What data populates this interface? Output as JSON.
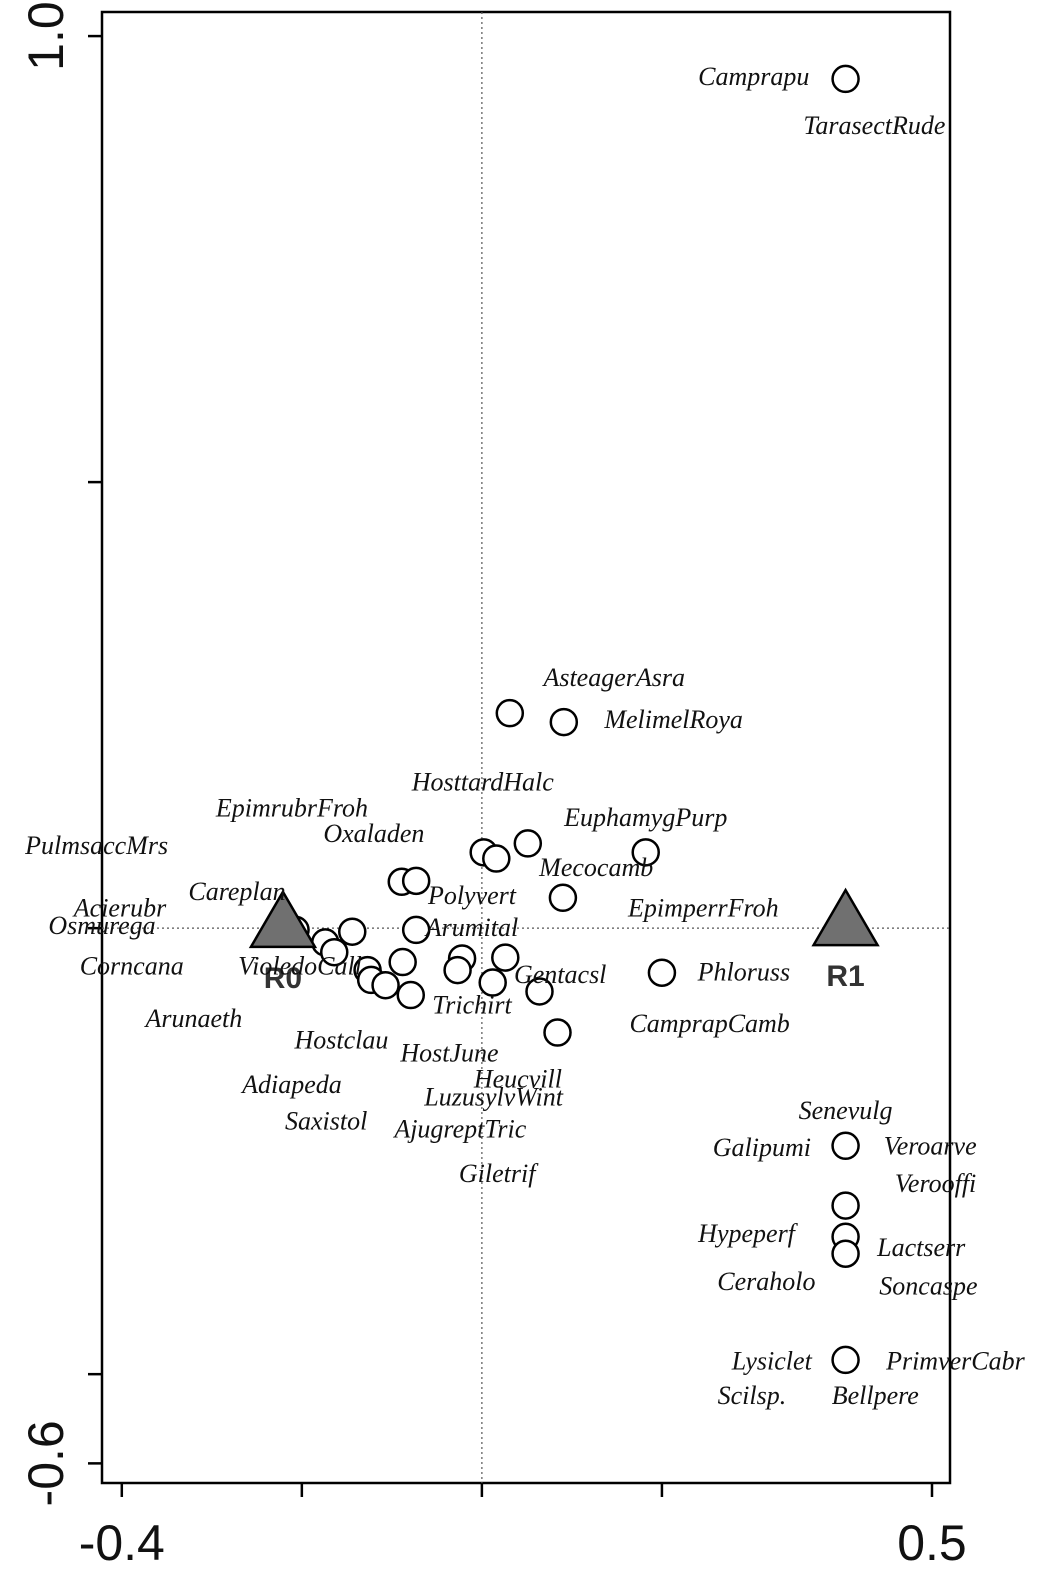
{
  "chart_data": {
    "type": "scatter",
    "xlim": [
      -0.422,
      0.52
    ],
    "ylim": [
      -0.622,
      1.027
    ],
    "xticks": [
      -0.4,
      {
        "value": -0.2,
        "label": null
      },
      {
        "value": 0,
        "label": null
      },
      {
        "value": 0.2,
        "label": null
      },
      0.5
    ],
    "yticks": [
      {
        "value": -0.6,
        "label": "-0.6"
      },
      {
        "value": -0.5,
        "label": null
      },
      {
        "value": 0,
        "label": null
      },
      {
        "value": 0.5,
        "label": null
      },
      {
        "value": 1,
        "label": "1.0"
      }
    ],
    "marker_color": "#ffffff",
    "centroid_color": "#707070",
    "sites": {
      "x": [
        0.404,
        0.031,
        0.091,
        0.002,
        0.016,
        0.051,
        0.182,
        -0.089,
        -0.073,
        0.09,
        -0.22,
        -0.207,
        -0.174,
        -0.164,
        -0.144,
        -0.073,
        -0.127,
        -0.123,
        -0.107,
        -0.088,
        -0.079,
        -0.022,
        -0.027,
        0.026,
        0.012,
        0.064,
        0.084,
        0.2,
        0.404,
        0.404,
        0.404,
        0.404,
        0.404
      ],
      "y": [
        0.952,
        0.241,
        0.231,
        0.085,
        0.078,
        0.095,
        0.085,
        0.052,
        0.053,
        0.034,
        0.003,
        -0.002,
        -0.016,
        -0.027,
        -0.004,
        -0.002,
        -0.047,
        -0.058,
        -0.064,
        -0.038,
        -0.075,
        -0.034,
        -0.047,
        -0.033,
        -0.061,
        -0.071,
        -0.117,
        -0.05,
        -0.244,
        -0.311,
        -0.346,
        -0.365,
        -0.484
      ]
    },
    "centroids": {
      "labels": [
        "R0",
        "R1"
      ],
      "x": [
        -0.221,
        0.404
      ],
      "y": [
        0.007,
        0.009
      ]
    },
    "species": {
      "labels": [
        "Camprapu",
        "TarasectRude",
        "AsteagerAsra",
        "MelimelRoya",
        "HosttardHalc",
        "EpimrubrFroh",
        "EuphamygPurp",
        "Oxaladen",
        "PulmsaccMrs",
        "Mecocamb",
        "Careplan",
        "Polyvert",
        "Acierubr",
        "EpimperrFroh",
        "Osmurega",
        "Arumital",
        "Corncana",
        "VioledoCall",
        "Gentacsl",
        "Phloruss",
        "Trichirt",
        "Arunaeth",
        "CamprapCamb",
        "Hostclau",
        "HostJune",
        "Heucvill",
        "Adiapeda",
        "LuzusylvWint",
        "Senevulg",
        "Saxistol",
        "AjugreptTric",
        "Galipumi",
        "Veroarve",
        "Giletrif",
        "Verooffi",
        "Hypeperf",
        "Lactserr",
        "Ceraholo",
        "Soncaspe",
        "Lysiclet",
        "PrimverCabr",
        "Scilsp.",
        "Bellpere"
      ],
      "x": [
        0.302,
        0.436,
        0.147,
        0.213,
        0.001,
        -0.211,
        0.182,
        -0.12,
        -0.428,
        0.127,
        -0.272,
        -0.011,
        -0.402,
        0.246,
        -0.422,
        -0.011,
        -0.389,
        -0.202,
        0.087,
        0.291,
        -0.011,
        -0.32,
        0.253,
        -0.156,
        -0.036,
        0.04,
        -0.211,
        0.013,
        0.404,
        -0.173,
        -0.024,
        0.311,
        0.498,
        0.017,
        0.504,
        0.294,
        0.488,
        0.316,
        0.496,
        0.322,
        0.526,
        0.3,
        0.437
      ],
      "y": [
        0.952,
        0.897,
        0.278,
        0.231,
        0.161,
        0.132,
        0.121,
        0.103,
        0.09,
        0.065,
        0.038,
        0.034,
        0.02,
        0.02,
        0,
        -0.002,
        -0.045,
        -0.045,
        -0.055,
        -0.052,
        -0.089,
        -0.104,
        -0.11,
        -0.128,
        -0.143,
        -0.172,
        -0.178,
        -0.192,
        -0.207,
        -0.219,
        -0.228,
        -0.249,
        -0.247,
        -0.278,
        -0.289,
        -0.345,
        -0.361,
        -0.399,
        -0.404,
        -0.488,
        -0.488,
        -0.527,
        -0.527
      ]
    }
  }
}
